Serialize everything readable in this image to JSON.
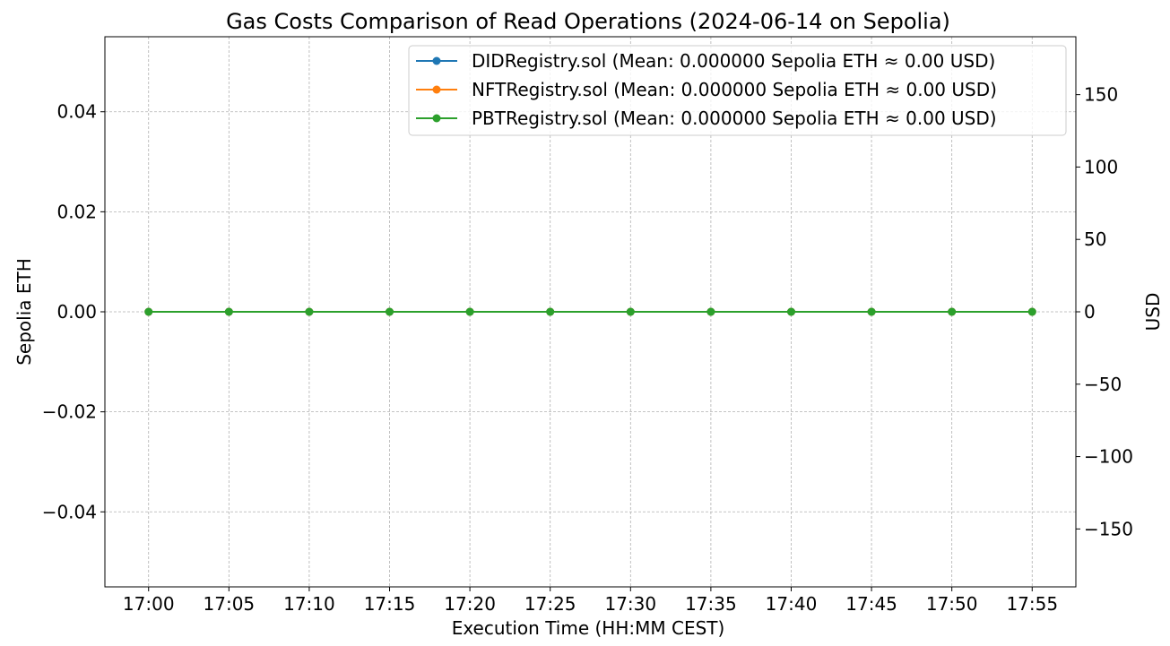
{
  "chart_data": {
    "type": "line",
    "title": "Gas Costs Comparison of Read Operations (2024-06-14 on Sepolia)",
    "xlabel": "Execution Time (HH:MM CEST)",
    "ylabel": "Sepolia ETH",
    "y2label": "USD",
    "categories": [
      "17:00",
      "17:05",
      "17:10",
      "17:15",
      "17:20",
      "17:25",
      "17:30",
      "17:35",
      "17:40",
      "17:45",
      "17:50",
      "17:55"
    ],
    "ylim": [
      -0.055,
      0.055
    ],
    "yticks": [
      -0.04,
      -0.02,
      0.0,
      0.02,
      0.04
    ],
    "ytick_labels": [
      "−0.04",
      "−0.02",
      "0.00",
      "0.02",
      "0.04"
    ],
    "y2lim": [
      -190,
      190
    ],
    "y2ticks": [
      -150,
      -100,
      -50,
      0,
      50,
      100,
      150
    ],
    "y2tick_labels": [
      "−150",
      "−100",
      "−50",
      "0",
      "50",
      "100",
      "150"
    ],
    "grid": true,
    "legend_position": "top-right",
    "series": [
      {
        "name": "DIDRegistry.sol (Mean: 0.000000 Sepolia ETH ≈ 0.00 USD)",
        "color": "#1f77b4",
        "values": [
          0,
          0,
          0,
          0,
          0,
          0,
          0,
          0,
          0,
          0,
          0,
          0
        ]
      },
      {
        "name": "NFTRegistry.sol (Mean: 0.000000 Sepolia ETH ≈ 0.00 USD)",
        "color": "#ff7f0e",
        "values": [
          0,
          0,
          0,
          0,
          0,
          0,
          0,
          0,
          0,
          0,
          0,
          0
        ]
      },
      {
        "name": "PBTRegistry.sol (Mean: 0.000000 Sepolia ETH ≈ 0.00 USD)",
        "color": "#2ca02c",
        "values": [
          0,
          0,
          0,
          0,
          0,
          0,
          0,
          0,
          0,
          0,
          0,
          0
        ]
      }
    ]
  }
}
